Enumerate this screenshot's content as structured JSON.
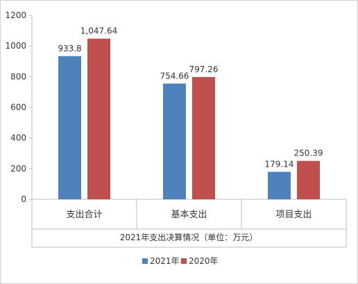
{
  "chart_data": {
    "type": "bar",
    "categories": [
      "支出合计",
      "基本支出",
      "项目支出"
    ],
    "series": [
      {
        "name": "2021年",
        "values": [
          933.8,
          754.66,
          179.14
        ],
        "labels": [
          "933.8",
          "754.66",
          "179.14"
        ],
        "color": "#4f81bd"
      },
      {
        "name": "2020年",
        "values": [
          1047.64,
          797.26,
          250.39
        ],
        "labels": [
          "1,047.64",
          "797.26",
          "250.39"
        ],
        "color": "#c0504d"
      }
    ],
    "title": "",
    "xlabel": "2021年支出决算情况（单位：万元）",
    "ylabel": "",
    "ylim": [
      0,
      1200
    ],
    "yticks": [
      0,
      200,
      400,
      600,
      800,
      1000,
      1200
    ],
    "grid": false,
    "legend": "bottom"
  }
}
